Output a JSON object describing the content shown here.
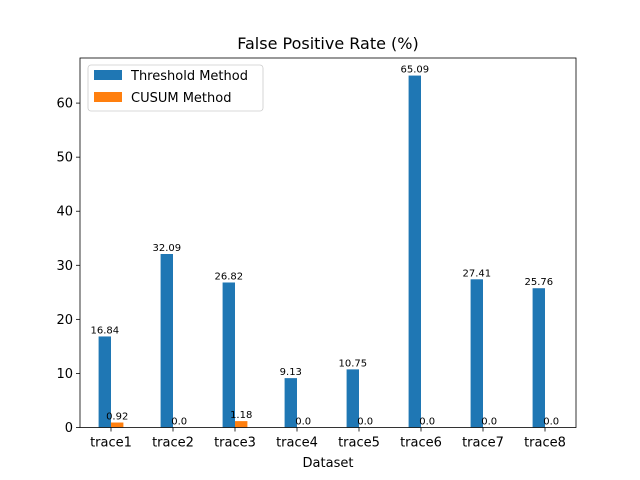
{
  "chart_data": {
    "type": "bar",
    "title": "False Positive Rate (%)",
    "xlabel": "Dataset",
    "ylabel": "",
    "ylim": [
      0,
      68.34
    ],
    "yticks": [
      0,
      10,
      20,
      30,
      40,
      50,
      60
    ],
    "categories": [
      "trace1",
      "trace2",
      "trace3",
      "trace4",
      "trace5",
      "trace6",
      "trace7",
      "trace8"
    ],
    "series": [
      {
        "name": "Threshold Method",
        "color": "#1f77b4",
        "values": [
          16.84,
          32.09,
          26.82,
          9.13,
          10.75,
          65.09,
          27.41,
          25.76
        ],
        "labels": [
          "16.84",
          "32.09",
          "26.82",
          "9.13",
          "10.75",
          "65.09",
          "27.41",
          "25.76"
        ]
      },
      {
        "name": "CUSUM Method",
        "color": "#ff7f0e",
        "values": [
          0.92,
          0.0,
          1.18,
          0.0,
          0.0,
          0.0,
          0.0,
          0.0
        ],
        "labels": [
          "0.92",
          "0.0",
          "1.18",
          "0.0",
          "0.0",
          "0.0",
          "0.0",
          "0.0"
        ]
      }
    ],
    "legend": "top-left",
    "grid": false
  }
}
